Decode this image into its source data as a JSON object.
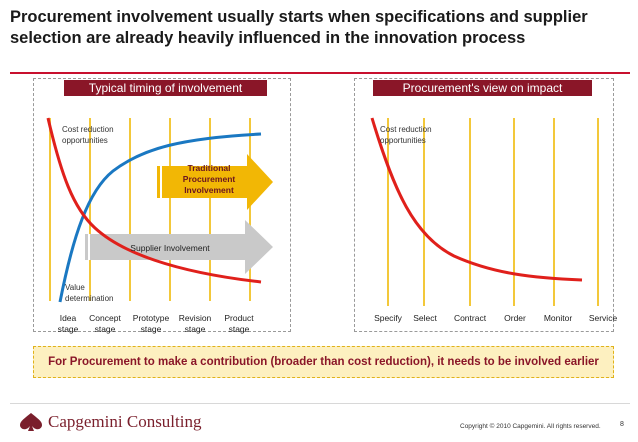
{
  "title": "Procurement involvement usually starts when specifications and supplier selection are already heavily influenced in the innovation process",
  "left_panel": {
    "header": "Typical timing of involvement",
    "cost_label": [
      "Cost reduction",
      "opportunities"
    ],
    "value_label": [
      "Value",
      "determination"
    ],
    "arrow_traditional": [
      "Traditional",
      "Procurement",
      "Involvement"
    ],
    "arrow_supplier": "Supplier Involvement",
    "stages": [
      [
        "Idea",
        "stage"
      ],
      [
        "Concept",
        "stage"
      ],
      [
        "Prototype",
        "stage"
      ],
      [
        "Revision",
        "stage"
      ],
      [
        "Product",
        "stage"
      ]
    ]
  },
  "right_panel": {
    "header": "Procurement's view on impact",
    "cost_label": [
      "Cost reduction",
      "opportunities"
    ],
    "stages": [
      "Specify",
      "Select",
      "Contract",
      "Order",
      "Monitor",
      "Service"
    ]
  },
  "banner": "For Procurement to make a contribution (broader than cost reduction), it needs to be involved earlier",
  "footer": {
    "logo": "Capgemini Consulting",
    "copyright": "Copyright © 2010 Capgemini. All rights reserved.",
    "page": "8"
  },
  "colors": {
    "brand": "#8a1628",
    "cost_curve": "#e0201b",
    "value_curve": "#1a78c2",
    "gridline": "#f3c83a",
    "arrow_traditional": "#f2b705",
    "arrow_supplier": "#c9c9c9",
    "banner_bg": "#fdf0c0"
  }
}
